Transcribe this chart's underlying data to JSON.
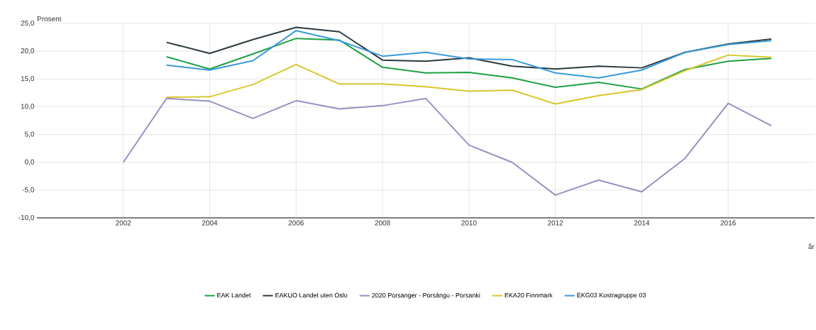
{
  "chart_data": {
    "type": "line",
    "ylabel": "Prosent",
    "xlabel": "år",
    "x": [
      2002,
      2003,
      2004,
      2005,
      2006,
      2007,
      2008,
      2009,
      2010,
      2011,
      2012,
      2013,
      2014,
      2015,
      2016,
      2017
    ],
    "series": [
      {
        "name": "EAK Landet",
        "color": "#1fa045",
        "values": [
          null,
          19.0,
          16.8,
          19.5,
          22.3,
          22.0,
          17.1,
          16.1,
          16.2,
          15.2,
          13.5,
          14.4,
          13.2,
          16.7,
          18.2,
          18.7
        ]
      },
      {
        "name": "EAKUO Landet uten Oslo",
        "color": "#2b3a3e",
        "values": [
          null,
          21.6,
          19.6,
          22.1,
          24.3,
          23.5,
          18.4,
          18.2,
          18.8,
          17.3,
          16.8,
          17.3,
          17.0,
          19.8,
          21.3,
          22.2
        ]
      },
      {
        "name": "2020 Porsanger - Porsángu - Porsanki",
        "color": "#9b8fc0",
        "values": [
          0.0,
          11.5,
          11.0,
          7.9,
          11.1,
          9.6,
          10.2,
          11.5,
          3.1,
          0.0,
          -5.9,
          -3.2,
          -5.3,
          0.7,
          10.6,
          6.6
        ]
      },
      {
        "name": "EKA20 Finnmark",
        "color": "#d9c62c",
        "values": [
          null,
          11.7,
          11.8,
          14.0,
          17.6,
          14.1,
          14.1,
          13.6,
          12.8,
          13.0,
          10.5,
          12.0,
          13.1,
          16.5,
          19.3,
          18.9
        ]
      },
      {
        "name": "EKG03 Kostragruppe 03",
        "color": "#3a9ad9",
        "values": [
          null,
          17.5,
          16.6,
          18.3,
          23.7,
          21.9,
          19.1,
          19.8,
          18.6,
          18.5,
          16.1,
          15.2,
          16.6,
          19.8,
          21.2,
          21.9
        ]
      }
    ],
    "xlim": [
      2000,
      2018
    ],
    "xticks": [
      2002,
      2004,
      2006,
      2008,
      2010,
      2012,
      2014,
      2016
    ],
    "ylim": [
      -10,
      25
    ],
    "yticks": [
      {
        "value": -10,
        "label": "-10,0"
      },
      {
        "value": -5,
        "label": "-5,0"
      },
      {
        "value": 0,
        "label": "0,0"
      },
      {
        "value": 5,
        "label": "5,0"
      },
      {
        "value": 10,
        "label": "10,0"
      },
      {
        "value": 15,
        "label": "15,0"
      },
      {
        "value": 20,
        "label": "20,0"
      },
      {
        "value": 25,
        "label": "25,0"
      }
    ],
    "grid": true,
    "legend": "bottom",
    "marker": "none",
    "line_style": "solid"
  }
}
